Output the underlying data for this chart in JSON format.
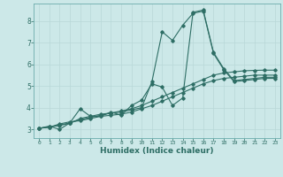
{
  "xlabel": "Humidex (Indice chaleur)",
  "bg_color": "#cce8e8",
  "line_color": "#2e6e65",
  "grid_color": "#b8d8d8",
  "xlim": [
    -0.5,
    23.5
  ],
  "ylim": [
    2.6,
    8.8
  ],
  "xticks": [
    0,
    1,
    2,
    3,
    4,
    5,
    6,
    7,
    8,
    9,
    10,
    11,
    12,
    13,
    14,
    15,
    16,
    17,
    18,
    19,
    20,
    21,
    22,
    23
  ],
  "yticks": [
    3,
    4,
    5,
    6,
    7,
    8
  ],
  "series": [
    {
      "x": [
        0,
        1,
        2,
        3,
        4,
        5,
        6,
        7,
        8,
        9,
        10,
        11,
        12,
        13,
        14,
        15,
        16,
        17,
        18,
        19,
        20,
        21,
        22,
        23
      ],
      "y": [
        3.05,
        3.15,
        3.0,
        3.3,
        3.95,
        3.6,
        3.6,
        3.8,
        3.65,
        4.1,
        4.35,
        5.1,
        4.95,
        4.1,
        4.45,
        8.4,
        8.5,
        6.55,
        5.8,
        5.25,
        5.3,
        5.35,
        5.4,
        5.4
      ]
    },
    {
      "x": [
        0,
        1,
        2,
        3,
        4,
        5,
        6,
        7,
        8,
        9,
        10,
        11,
        12,
        13,
        14,
        15,
        16,
        17,
        18,
        19,
        20,
        21,
        22,
        23
      ],
      "y": [
        3.05,
        3.1,
        3.25,
        3.35,
        3.4,
        3.5,
        3.6,
        3.65,
        3.7,
        3.8,
        3.95,
        4.1,
        4.3,
        4.5,
        4.7,
        4.9,
        5.1,
        5.25,
        5.35,
        5.4,
        5.45,
        5.5,
        5.5,
        5.5
      ]
    },
    {
      "x": [
        0,
        1,
        2,
        3,
        4,
        5,
        6,
        7,
        8,
        9,
        10,
        11,
        12,
        13,
        14,
        15,
        16,
        17,
        18,
        19,
        20,
        21,
        22,
        23
      ],
      "y": [
        3.05,
        3.1,
        3.2,
        3.3,
        3.45,
        3.55,
        3.65,
        3.75,
        3.85,
        3.95,
        4.1,
        4.3,
        4.5,
        4.7,
        4.9,
        5.1,
        5.3,
        5.5,
        5.6,
        5.65,
        5.7,
        5.72,
        5.73,
        5.73
      ]
    },
    {
      "x": [
        0,
        1,
        2,
        3,
        4,
        5,
        6,
        7,
        8,
        9,
        10,
        11,
        12,
        13,
        14,
        15,
        16,
        17,
        18,
        19,
        20,
        21,
        22,
        23
      ],
      "y": [
        3.05,
        3.12,
        3.18,
        3.28,
        3.5,
        3.6,
        3.7,
        3.75,
        3.8,
        3.9,
        4.0,
        5.2,
        7.5,
        7.1,
        7.8,
        8.35,
        8.45,
        6.5,
        5.75,
        5.2,
        5.25,
        5.3,
        5.35,
        5.35
      ]
    }
  ]
}
